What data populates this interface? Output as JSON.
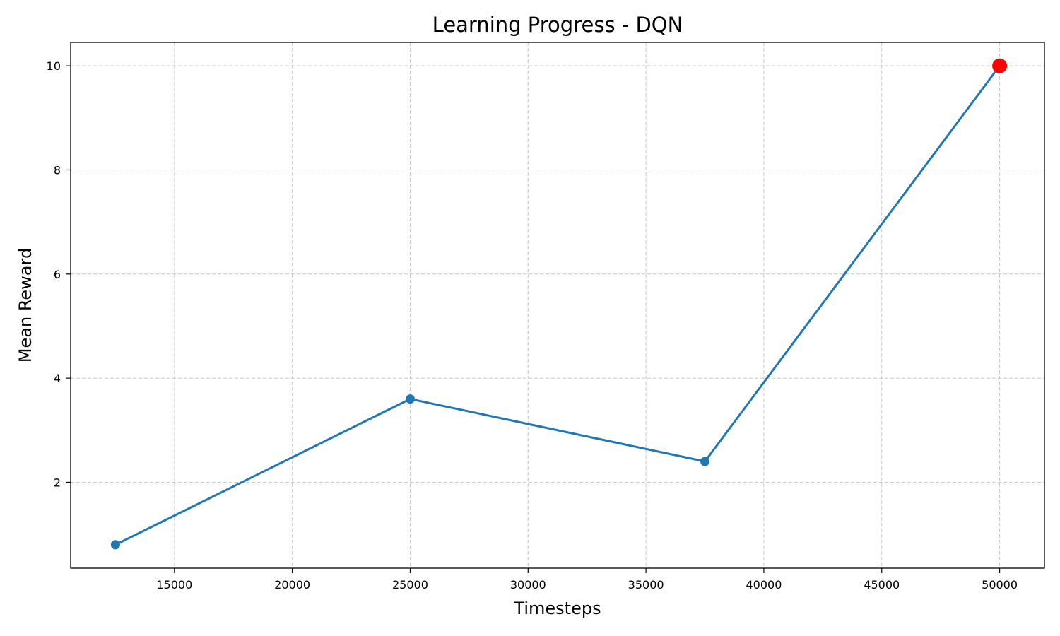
{
  "chart_data": {
    "type": "line",
    "title": "Learning Progress - DQN",
    "xlabel": "Timesteps",
    "ylabel": "Mean Reward",
    "xlim": [
      10600,
      51900
    ],
    "ylim": [
      0.35,
      10.45
    ],
    "xticks": [
      15000,
      20000,
      25000,
      30000,
      35000,
      40000,
      45000,
      50000
    ],
    "yticks": [
      2,
      4,
      6,
      8,
      10
    ],
    "grid": true,
    "series": [
      {
        "x": [
          12500,
          25000,
          37500,
          50000
        ],
        "y": [
          0.8,
          3.6,
          2.4,
          10.0
        ],
        "color": "#1f77b4"
      }
    ],
    "highlight_point": {
      "x": 50000,
      "y": 10.0,
      "color": "#ff0000"
    }
  }
}
